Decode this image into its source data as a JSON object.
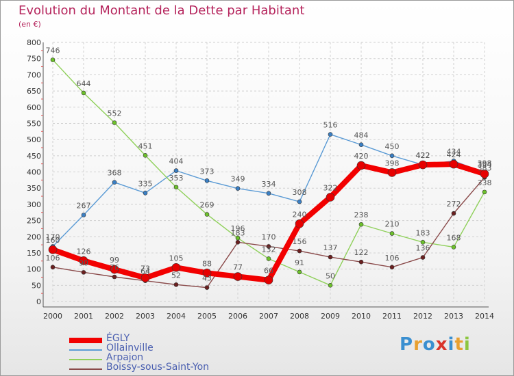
{
  "title": "Evolution du Montant de la Dette par Habitant",
  "subtitle": "(en €)",
  "logo": {
    "text": "Proxiti",
    "letters": [
      "P",
      "r",
      "o",
      "x",
      "i",
      "t",
      "i"
    ],
    "colors": [
      "#3a8fd0",
      "#e8a030",
      "#3a8fd0",
      "#d9342b",
      "#3a8fd0",
      "#e8a030",
      "#8cc63f"
    ]
  },
  "chart_data": {
    "type": "line",
    "x": [
      "2000",
      "2001",
      "2002",
      "2003",
      "2004",
      "2005",
      "2006",
      "2007",
      "2008",
      "2009",
      "2010",
      "2011",
      "2012",
      "2013",
      "2014"
    ],
    "ylim": [
      0,
      800
    ],
    "yticks": [
      0,
      50,
      100,
      150,
      200,
      250,
      300,
      350,
      400,
      450,
      500,
      550,
      600,
      650,
      700,
      750,
      800
    ],
    "grid": true,
    "legend_position": "bottom-left",
    "series": [
      {
        "name": "Ollainville",
        "color": "#5b9bd5",
        "marker": "#3a7fc4",
        "thick": false,
        "values": [
          170,
          267,
          368,
          335,
          404,
          373,
          349,
          334,
          308,
          516,
          484,
          450,
          422,
          434,
          398
        ],
        "labels": [
          "170",
          "267",
          "368",
          "335",
          "404",
          "373",
          "349",
          "334",
          "308",
          "516",
          "484",
          "450",
          "422",
          "434",
          "398"
        ]
      },
      {
        "name": "Arpajon",
        "color": "#8fd05a",
        "marker": "#6cc12a",
        "thick": false,
        "values": [
          746,
          644,
          552,
          451,
          353,
          269,
          196,
          132,
          91,
          50,
          238,
          210,
          183,
          168,
          338
        ],
        "labels": [
          "746",
          "644",
          "552",
          "451",
          "353",
          "269",
          "196",
          "132",
          "91",
          "50",
          "238",
          "210",
          "183",
          "168",
          "338"
        ]
      },
      {
        "name": "Boissy-sous-Saint-Yon",
        "color": "#8a4a4a",
        "marker": "#6b1f1f",
        "thick": false,
        "values": [
          106,
          90,
          76,
          64,
          52,
          43,
          183,
          170,
          156,
          137,
          122,
          106,
          136,
          272,
          383
        ],
        "labels": [
          "106",
          "90",
          "76",
          "64",
          "52",
          "43",
          "183",
          "170",
          "156",
          "137",
          "122",
          "106",
          "136",
          "272",
          "383"
        ]
      },
      {
        "name": "ÉGLY",
        "color": "#f20000",
        "marker": "#e60000",
        "thick": true,
        "values": [
          160,
          126,
          99,
          73,
          105,
          88,
          77,
          66,
          240,
          322,
          420,
          398,
          422,
          424,
          394
        ],
        "labels": [
          "160",
          "126",
          "99",
          "73",
          "105",
          "88",
          "77",
          "66",
          "240",
          "322",
          "420",
          "398",
          "422",
          "424",
          "394"
        ]
      }
    ],
    "legend": [
      "ÉGLY",
      "Ollainville",
      "Arpajon",
      "Boissy-sous-Saint-Yon"
    ]
  }
}
